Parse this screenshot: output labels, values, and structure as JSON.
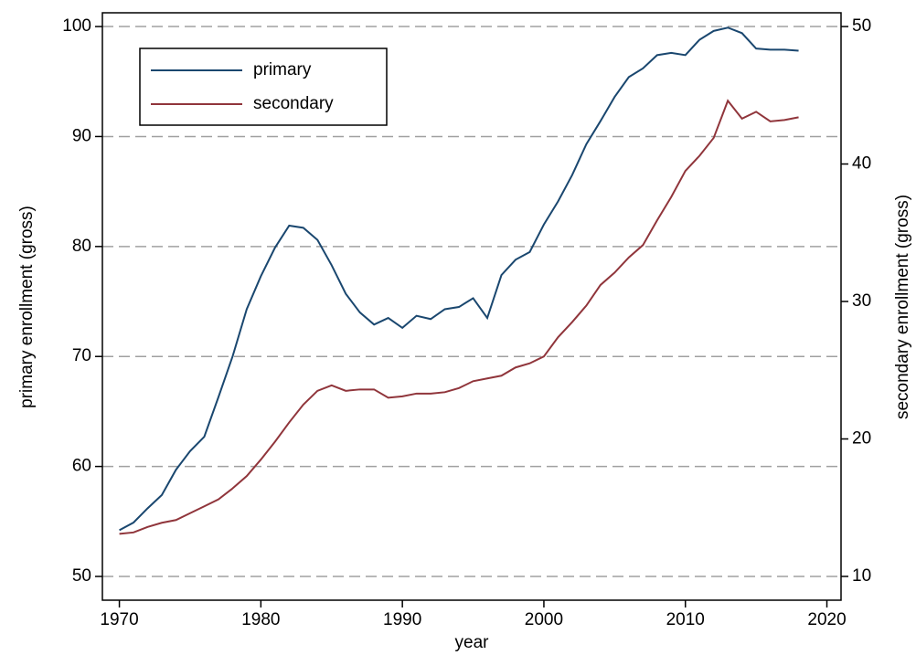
{
  "chart_data": {
    "type": "line",
    "x_label": "year",
    "y_label": "primary enrollment (gross)",
    "y2_label": "secondary enrollment (gross)",
    "x": [
      1970,
      1971,
      1972,
      1973,
      1974,
      1975,
      1976,
      1977,
      1978,
      1979,
      1980,
      1981,
      1982,
      1983,
      1984,
      1985,
      1986,
      1987,
      1988,
      1989,
      1990,
      1991,
      1992,
      1993,
      1994,
      1995,
      1996,
      1997,
      1998,
      1999,
      2000,
      2001,
      2002,
      2003,
      2004,
      2005,
      2006,
      2007,
      2008,
      2009,
      2010,
      2011,
      2012,
      2013,
      2014,
      2015,
      2016,
      2017,
      2018
    ],
    "series": [
      {
        "name": "primary",
        "color": "#1a476f",
        "axis": "y",
        "values": [
          54.2,
          54.9,
          56.2,
          57.4,
          59.7,
          61.4,
          62.7,
          66.3,
          70.0,
          74.3,
          77.3,
          79.9,
          81.9,
          81.7,
          80.6,
          78.3,
          75.7,
          74.0,
          72.9,
          73.5,
          72.6,
          73.7,
          73.4,
          74.3,
          74.5,
          75.3,
          73.5,
          77.4,
          78.8,
          79.5,
          82.0,
          84.1,
          86.5,
          89.3,
          91.4,
          93.6,
          95.4,
          96.2,
          97.4,
          97.6,
          97.4,
          98.8,
          99.6,
          99.9,
          99.4,
          98.0,
          97.9,
          97.9,
          97.8
        ]
      },
      {
        "name": "secondary",
        "color": "#90353b",
        "axis": "y2",
        "values": [
          13.1,
          13.2,
          13.6,
          13.9,
          14.1,
          14.6,
          15.1,
          15.6,
          16.4,
          17.3,
          18.5,
          19.8,
          21.2,
          22.5,
          23.5,
          23.9,
          23.5,
          23.6,
          23.6,
          23.0,
          23.1,
          23.3,
          23.3,
          23.4,
          23.7,
          24.2,
          24.4,
          24.6,
          25.2,
          25.5,
          26.0,
          27.4,
          28.5,
          29.7,
          31.2,
          32.1,
          33.2,
          34.1,
          35.9,
          37.6,
          39.5,
          40.6,
          41.9,
          44.6,
          43.3,
          43.8,
          43.1,
          43.2,
          43.4
        ]
      }
    ],
    "xlim": [
      1968.8,
      2021.0
    ],
    "xticks": [
      1970,
      1980,
      1990,
      2000,
      2010,
      2020
    ],
    "ylim": [
      47.84,
      101.25
    ],
    "yticks": [
      50,
      60,
      70,
      80,
      90,
      100
    ],
    "y2lim": [
      8.27,
      51.0
    ],
    "y2ticks": [
      10,
      20,
      30,
      40,
      50
    ],
    "grid": true,
    "legend": "top left"
  }
}
